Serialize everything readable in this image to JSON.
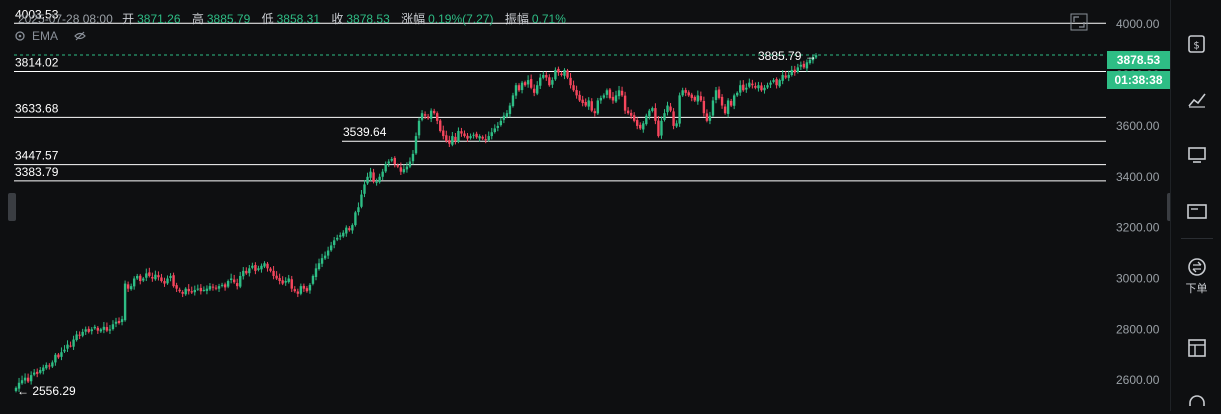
{
  "info": {
    "date": "2025-07-28 08:00",
    "open_label": "开",
    "open": "3871.26",
    "high_label": "高",
    "high": "3885.79",
    "low_label": "低",
    "low": "3858.31",
    "close_label": "收",
    "close": "3878.53",
    "change_label": "涨幅",
    "change": "0.19%(7.27)",
    "amplitude_label": "振幅",
    "amplitude": "0.71%"
  },
  "indicator": {
    "label": "EMA"
  },
  "tags": {
    "price": "3878.53",
    "countdown": "01:38:38"
  },
  "sidebar": {
    "order_label": "下单"
  },
  "colors": {
    "up": "#2ebd85",
    "down": "#f6465d",
    "grid": "#ffffff",
    "bg": "#0e0f11"
  },
  "chart_data": {
    "type": "candlestick",
    "y_ticks": [
      "4000.00",
      "3800.00",
      "3600.00",
      "3400.00",
      "3200.00",
      "3000.00",
      "2800.00",
      "2600.00"
    ],
    "ylim": [
      2479,
      4095
    ],
    "last_price": 3878.53,
    "high_marker": "3885.79",
    "low_marker": "2556.29",
    "horizontal_levels": [
      {
        "value": 4003.53,
        "label": "4003.53"
      },
      {
        "value": 3814.02,
        "label": "3814.02"
      },
      {
        "value": 3633.68,
        "label": "3633.68"
      },
      {
        "value": 3539.64,
        "label": "3539.64"
      },
      {
        "value": 3447.57,
        "label": "3447.57"
      },
      {
        "value": 3383.79,
        "label": "3383.79"
      }
    ],
    "closes": [
      2570,
      2590,
      2600,
      2610,
      2595,
      2620,
      2630,
      2625,
      2640,
      2650,
      2660,
      2655,
      2670,
      2700,
      2690,
      2710,
      2720,
      2740,
      2735,
      2760,
      2780,
      2775,
      2790,
      2800,
      2790,
      2800,
      2810,
      2795,
      2800,
      2810,
      2795,
      2800,
      2820,
      2830,
      2825,
      2840,
      2980,
      2960,
      2970,
      3000,
      3010,
      2990,
      3000,
      3020,
      3010,
      3000,
      3015,
      3005,
      2990,
      2980,
      3000,
      3010,
      2970,
      2960,
      2950,
      2940,
      2960,
      2950,
      2945,
      2955,
      2960,
      2950,
      2955,
      2960,
      2970,
      2965,
      2960,
      2970,
      2975,
      2965,
      2990,
      3000,
      2985,
      2970,
      3010,
      3030,
      3020,
      3040,
      3050,
      3030,
      3040,
      3050,
      3060,
      3040,
      3030,
      3010,
      3000,
      2990,
      2980,
      2990,
      3000,
      2960,
      2950,
      2940,
      2970,
      2960,
      2950,
      2975,
      3010,
      3040,
      3060,
      3080,
      3090,
      3110,
      3130,
      3150,
      3160,
      3170,
      3180,
      3200,
      3190,
      3210,
      3260,
      3280,
      3330,
      3370,
      3400,
      3420,
      3380,
      3380,
      3400,
      3420,
      3450,
      3460,
      3470,
      3450,
      3440,
      3420,
      3430,
      3440,
      3460,
      3490,
      3560,
      3620,
      3650,
      3640,
      3630,
      3660,
      3650,
      3620,
      3580,
      3560,
      3540,
      3530,
      3560,
      3540,
      3580,
      3570,
      3560,
      3550,
      3560,
      3565,
      3555,
      3560,
      3550,
      3545,
      3560,
      3575,
      3590,
      3600,
      3620,
      3640,
      3650,
      3680,
      3720,
      3760,
      3740,
      3770,
      3760,
      3780,
      3750,
      3730,
      3760,
      3790,
      3800,
      3790,
      3760,
      3780,
      3820,
      3810,
      3800,
      3820,
      3790,
      3760,
      3740,
      3720,
      3700,
      3690,
      3680,
      3700,
      3660,
      3650,
      3700,
      3710,
      3720,
      3740,
      3710,
      3700,
      3720,
      3740,
      3720,
      3660,
      3650,
      3640,
      3620,
      3600,
      3590,
      3610,
      3640,
      3660,
      3670,
      3620,
      3560,
      3620,
      3650,
      3680,
      3660,
      3600,
      3610,
      3720,
      3740,
      3730,
      3720,
      3710,
      3700,
      3720,
      3700,
      3650,
      3620,
      3640,
      3700,
      3740,
      3710,
      3680,
      3650,
      3700,
      3680,
      3720,
      3730,
      3760,
      3740,
      3750,
      3770,
      3760,
      3750,
      3760,
      3740,
      3750,
      3760,
      3770,
      3780,
      3760,
      3780,
      3800,
      3790,
      3800,
      3820,
      3810,
      3830,
      3840,
      3830,
      3850,
      3860,
      3870,
      3878
    ]
  }
}
